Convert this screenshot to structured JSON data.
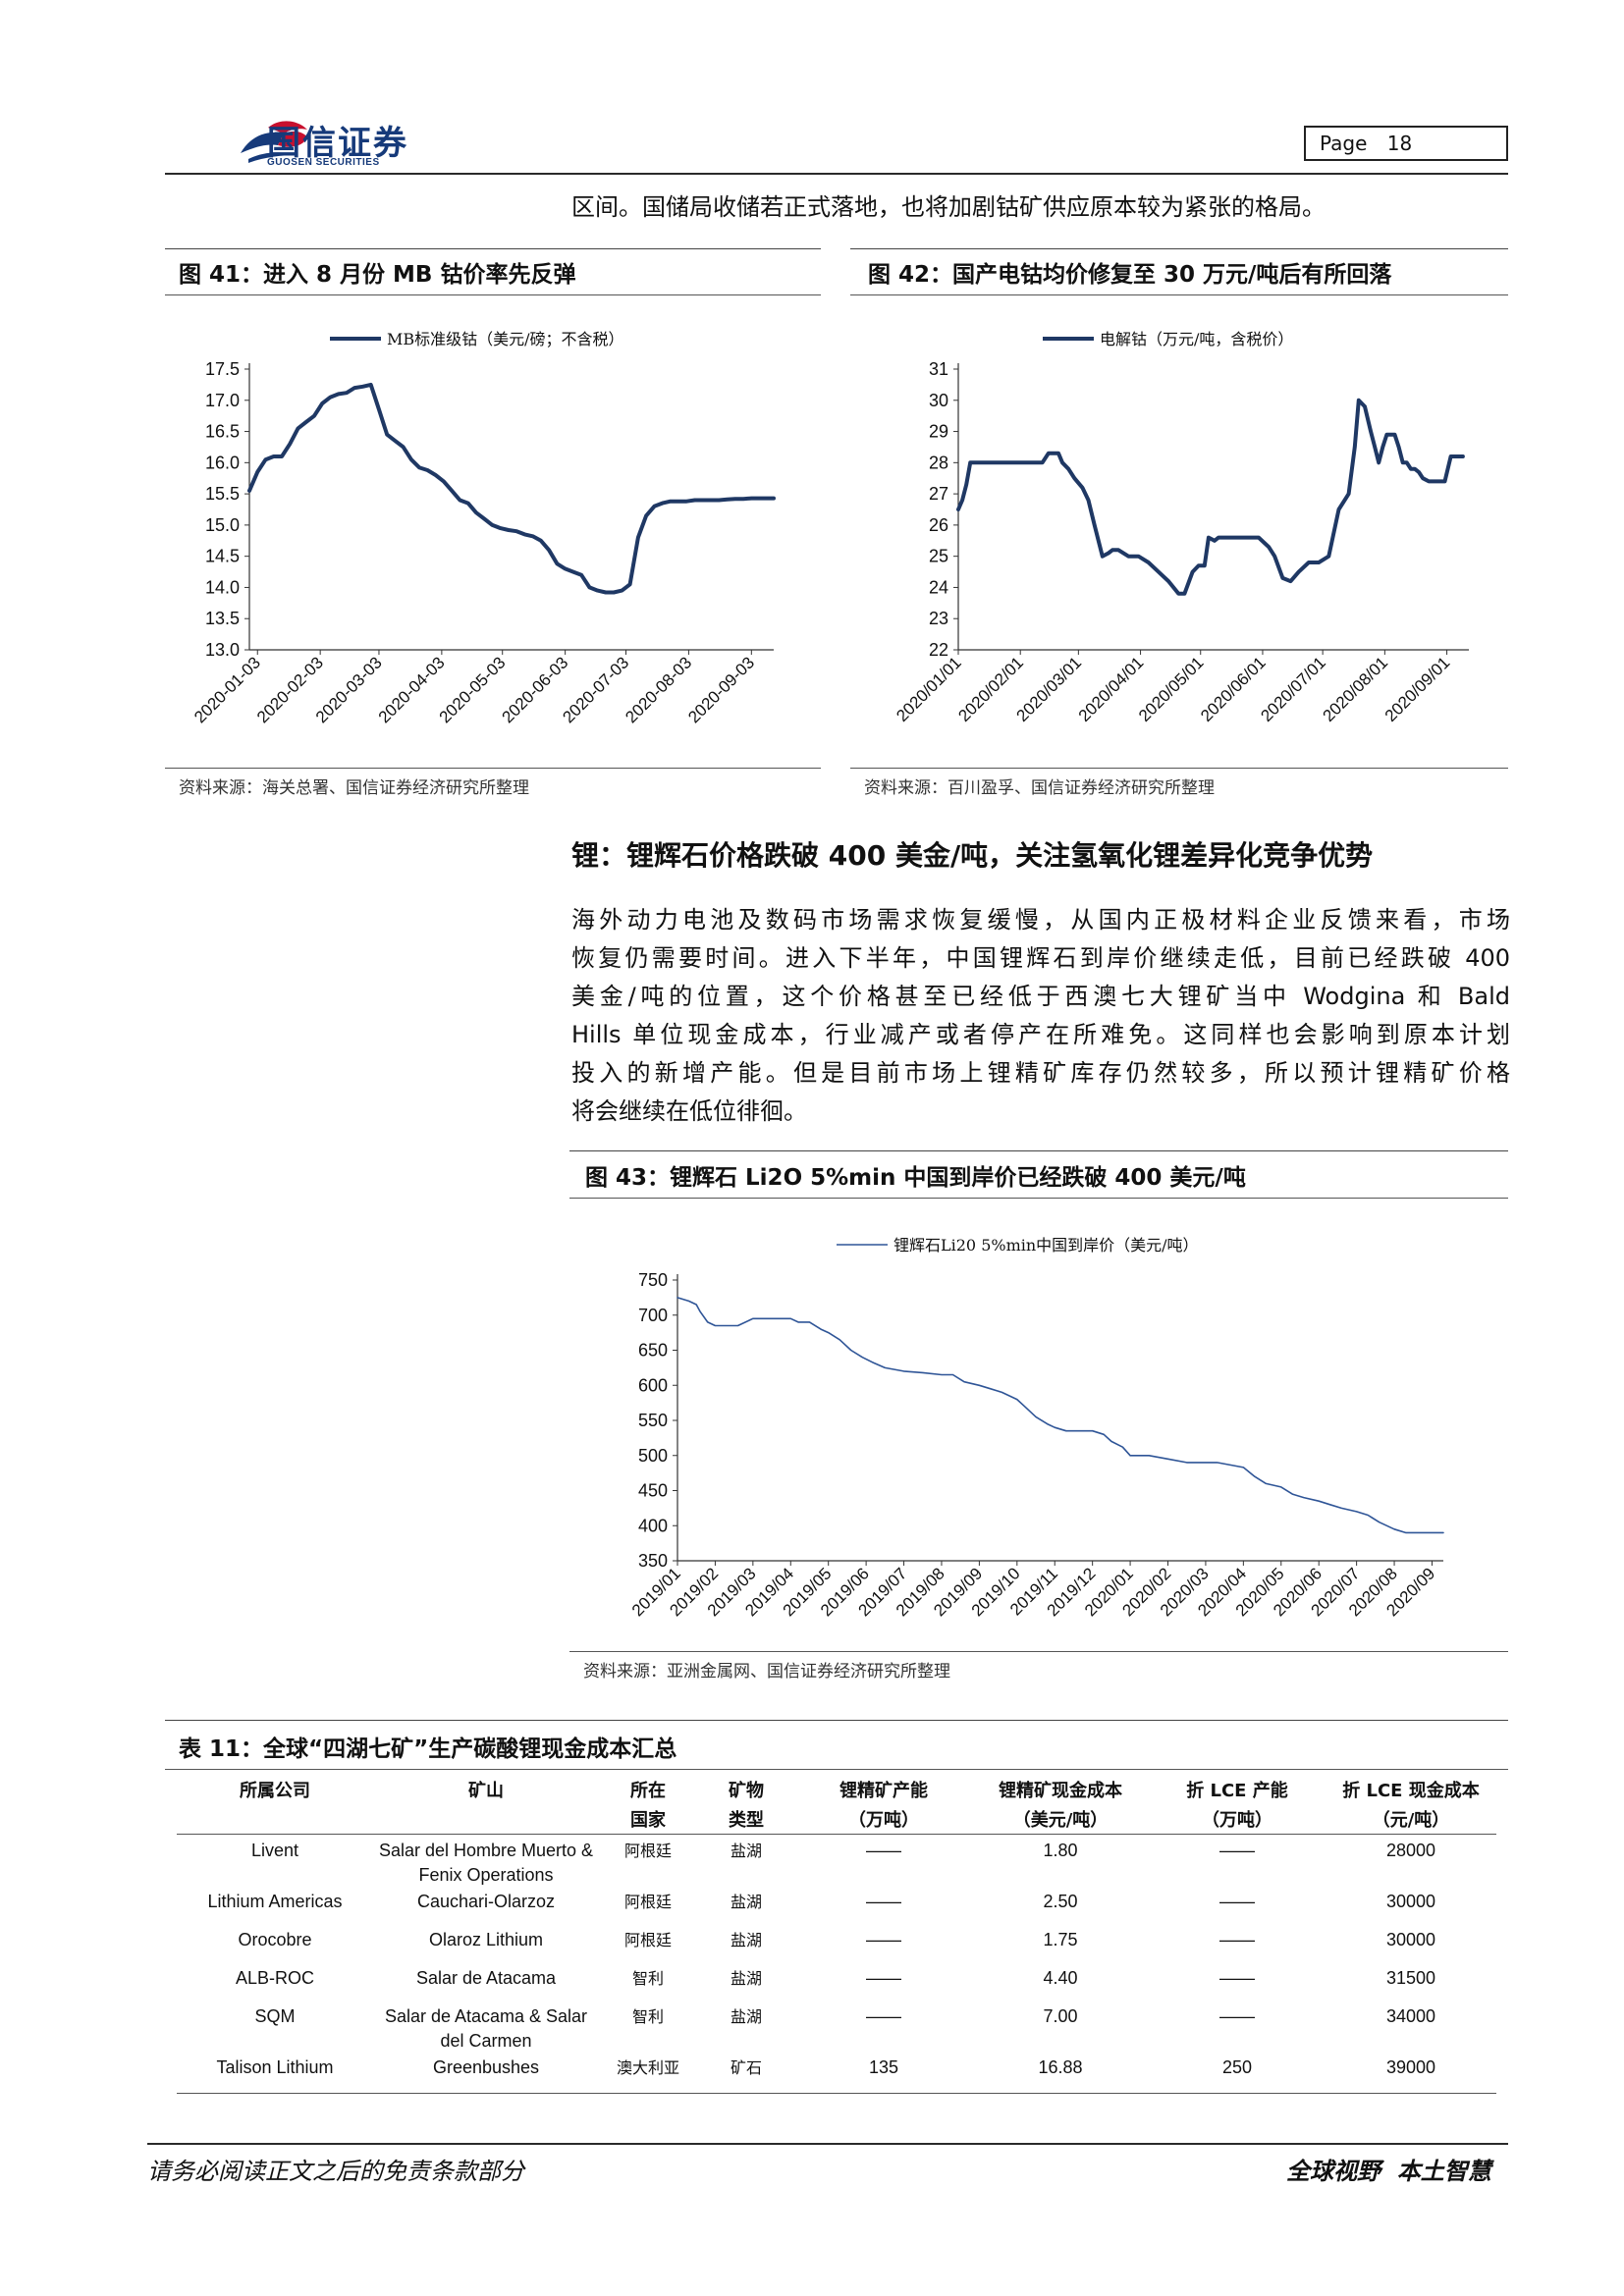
{
  "header": {
    "logo_cn": "国信证券",
    "logo_en": "GUOSEN SECURITIES",
    "page_label": "Page",
    "page_number": "18",
    "brand_colors": {
      "blue": "#163a7a",
      "red": "#c8102e"
    }
  },
  "intro_paragraph": "区间。国储局收储若正式落地，也将加剧钴矿供应原本较为紧张的格局。",
  "fig41": {
    "title": "图 41：进入 8 月份 MB 钴价率先反弹",
    "source": "资料来源：海关总署、国信证券经济研究所整理"
  },
  "fig42": {
    "title": "图 42：国产电钴均价修复至 30 万元/吨后有所回落",
    "source": "资料来源：百川盈孚、国信证券经济研究所整理"
  },
  "section": {
    "heading": "锂：锂辉石价格跌破 400 美金/吨，关注氢氧化锂差异化竞争优势",
    "lines": [
      "海外动力电池及数码市场需求恢复缓慢，从国内正极材料企业反馈来看，市场",
      "恢复仍需要时间。进入下半年，中国锂辉石到岸价继续走低，目前已经跌破 400",
      "美金/吨的位置，这个价格甚至已经低于西澳七大锂矿当中 Wodgina 和 Bald",
      "Hills 单位现金成本，行业减产或者停产在所难免。这同样也会影响到原本计划",
      "投入的新增产能。但是目前市场上锂精矿库存仍然较多，所以预计锂精矿价格",
      "将会继续在低位徘徊。"
    ]
  },
  "fig43": {
    "title": "图 43：锂辉石 Li2O 5%min 中国到岸价已经跌破 400 美元/吨",
    "source": "资料来源：亚洲金属网、国信证券经济研究所整理"
  },
  "chart_data": [
    {
      "type": "line",
      "legend": "MB标准级钴（美元/磅；不含税）",
      "legend_position": "top",
      "x_ticks": [
        "2020-01-03",
        "2020-02-03",
        "2020-03-03",
        "2020-04-03",
        "2020-05-03",
        "2020-06-03",
        "2020-07-03",
        "2020-08-03",
        "2020-09-03"
      ],
      "yticks": [
        "17.5",
        "17.0",
        "16.5",
        "16.0",
        "15.5",
        "15.0",
        "14.5",
        "14.0",
        "13.5",
        "13.0"
      ],
      "ylim": [
        13.0,
        17.5
      ],
      "x_range_days": [
        -4,
        255
      ],
      "series": [
        {
          "name": "MB标准级钴（美元/磅；不含税）",
          "color": "#1f3864",
          "x_days": [
            -4,
            0,
            4,
            8,
            12,
            16,
            20,
            24,
            28,
            32,
            36,
            40,
            44,
            48,
            52,
            56,
            60,
            64,
            68,
            72,
            76,
            80,
            84,
            88,
            92,
            96,
            100,
            104,
            108,
            112,
            116,
            120,
            124,
            128,
            132,
            136,
            140,
            144,
            148,
            152,
            156,
            160,
            164,
            168,
            172,
            176,
            180,
            184,
            188,
            192,
            196,
            200,
            204,
            208,
            212,
            216,
            220,
            224,
            228,
            232,
            236,
            240,
            244,
            248,
            252,
            255
          ],
          "values": [
            15.55,
            15.85,
            16.05,
            16.1,
            16.1,
            16.3,
            16.55,
            16.65,
            16.75,
            16.95,
            17.05,
            17.1,
            17.12,
            17.2,
            17.22,
            17.25,
            16.85,
            16.45,
            16.35,
            16.25,
            16.05,
            15.92,
            15.88,
            15.8,
            15.7,
            15.55,
            15.4,
            15.35,
            15.2,
            15.1,
            15.0,
            14.95,
            14.92,
            14.9,
            14.85,
            14.82,
            14.75,
            14.6,
            14.38,
            14.3,
            14.25,
            14.2,
            14.0,
            13.95,
            13.92,
            13.92,
            13.95,
            14.05,
            14.8,
            15.15,
            15.3,
            15.35,
            15.38,
            15.38,
            15.38,
            15.4,
            15.4,
            15.4,
            15.4,
            15.41,
            15.42,
            15.42,
            15.43,
            15.43,
            15.43,
            15.43
          ]
        }
      ]
    },
    {
      "type": "line",
      "legend": "电解钴（万元/吨，含税价）",
      "legend_position": "top",
      "x_ticks": [
        "2020/01/01",
        "2020/02/01",
        "2020/03/01",
        "2020/04/01",
        "2020/05/01",
        "2020/06/01",
        "2020/07/01",
        "2020/08/01",
        "2020/09/01"
      ],
      "yticks": [
        "31",
        "30",
        "29",
        "28",
        "27",
        "26",
        "25",
        "24",
        "23",
        "22"
      ],
      "ylim": [
        22,
        31
      ],
      "x_range_days": [
        0,
        255
      ],
      "series": [
        {
          "name": "电解钴（万元/吨，含税价）",
          "color": "#1f3864",
          "x_days": [
            0,
            2,
            4,
            6,
            8,
            15,
            25,
            35,
            42,
            45,
            50,
            52,
            55,
            58,
            62,
            65,
            68,
            72,
            75,
            77,
            80,
            85,
            90,
            95,
            100,
            105,
            110,
            113,
            117,
            120,
            123,
            125,
            128,
            130,
            135,
            140,
            145,
            150,
            155,
            158,
            162,
            166,
            170,
            175,
            180,
            185,
            190,
            195,
            198,
            200,
            203,
            206,
            208,
            210,
            212,
            214,
            216,
            218,
            220,
            222,
            224,
            226,
            228,
            230,
            232,
            235,
            238,
            240,
            243,
            246,
            248,
            252
          ],
          "values": [
            26.5,
            26.8,
            27.3,
            28.0,
            28.0,
            28.0,
            28.0,
            28.0,
            28.0,
            28.3,
            28.3,
            28.0,
            27.8,
            27.5,
            27.2,
            26.8,
            26.0,
            25.0,
            25.1,
            25.2,
            25.2,
            25.0,
            25.0,
            24.8,
            24.5,
            24.2,
            23.8,
            23.8,
            24.5,
            24.7,
            24.7,
            25.6,
            25.5,
            25.6,
            25.6,
            25.6,
            25.6,
            25.6,
            25.3,
            25.0,
            24.3,
            24.2,
            24.5,
            24.8,
            24.8,
            25.0,
            26.5,
            27.0,
            28.5,
            30.0,
            29.8,
            29.0,
            28.5,
            28.0,
            28.5,
            28.9,
            28.9,
            28.9,
            28.5,
            28.0,
            28.0,
            27.8,
            27.8,
            27.7,
            27.5,
            27.4,
            27.4,
            27.4,
            27.4,
            28.2,
            28.2,
            28.2
          ]
        }
      ]
    },
    {
      "type": "line",
      "legend": "锂辉石Li20 5%min中国到岸价（美元/吨）",
      "legend_position": "top",
      "x_ticks": [
        "2019/01",
        "2019/02",
        "2019/03",
        "2019/04",
        "2019/05",
        "2019/06",
        "2019/07",
        "2019/08",
        "2019/09",
        "2019/10",
        "2019/11",
        "2019/12",
        "2020/01",
        "2020/02",
        "2020/03",
        "2020/04",
        "2020/05",
        "2020/06",
        "2020/07",
        "2020/08",
        "2020/09"
      ],
      "yticks": [
        "750",
        "700",
        "650",
        "600",
        "550",
        "500",
        "450",
        "400",
        "350"
      ],
      "ylim": [
        350,
        750
      ],
      "x_range_months": [
        0,
        20.3
      ],
      "series": [
        {
          "name": "锂辉石Li20 5%min中国到岸价（美元/吨）",
          "color": "#2f5597",
          "x_months": [
            0,
            0.3,
            0.5,
            0.6,
            0.8,
            1.0,
            1.5,
            1.6,
            2.0,
            2.5,
            3.0,
            3.2,
            3.5,
            3.8,
            4.0,
            4.3,
            4.6,
            4.9,
            5.2,
            5.5,
            6.0,
            6.5,
            7.0,
            7.3,
            7.6,
            8.0,
            8.3,
            8.6,
            9.0,
            9.2,
            9.5,
            9.8,
            10.0,
            10.3,
            10.6,
            11.0,
            11.3,
            11.5,
            11.8,
            12.0,
            12.5,
            13.0,
            13.5,
            14.0,
            14.3,
            14.6,
            15.0,
            15.3,
            15.6,
            16.0,
            16.3,
            16.6,
            17.0,
            17.3,
            17.6,
            18.0,
            18.3,
            18.6,
            19.0,
            19.3,
            19.6,
            20.0,
            20.3
          ],
          "values": [
            725,
            720,
            715,
            705,
            690,
            685,
            685,
            685,
            695,
            695,
            695,
            690,
            690,
            680,
            675,
            665,
            650,
            640,
            632,
            625,
            620,
            618,
            615,
            615,
            605,
            600,
            595,
            590,
            580,
            570,
            555,
            545,
            540,
            535,
            535,
            535,
            530,
            520,
            512,
            500,
            500,
            495,
            490,
            490,
            490,
            487,
            483,
            470,
            460,
            455,
            445,
            440,
            435,
            430,
            425,
            420,
            415,
            405,
            395,
            390,
            390,
            390,
            390
          ]
        }
      ]
    }
  ],
  "table": {
    "title": "表 11：全球“四湖七矿”生产碳酸锂现金成本汇总",
    "headers": [
      [
        "所属公司",
        ""
      ],
      [
        "矿山",
        ""
      ],
      [
        "所在",
        "国家"
      ],
      [
        "矿物",
        "类型"
      ],
      [
        "锂精矿产能",
        "（万吨）"
      ],
      [
        "锂精矿现金成本",
        "（美元/吨）"
      ],
      [
        "折 LCE 产能",
        "（万吨）"
      ],
      [
        "折 LCE 现金成本",
        "（元/吨）"
      ]
    ],
    "rows": [
      [
        "Livent",
        "Salar del Hombre Muerto & Fenix Operations",
        "阿根廷",
        "盐湖",
        "——",
        "1.80",
        "——",
        "28000"
      ],
      [
        "Lithium Americas",
        "Cauchari-Olarzoz",
        "阿根廷",
        "盐湖",
        "——",
        "2.50",
        "——",
        "30000"
      ],
      [
        "Orocobre",
        "Olaroz Lithium",
        "阿根廷",
        "盐湖",
        "——",
        "1.75",
        "——",
        "30000"
      ],
      [
        "ALB-ROC",
        "Salar de Atacama",
        "智利",
        "盐湖",
        "——",
        "4.40",
        "——",
        "31500"
      ],
      [
        "SQM",
        "Salar de Atacama & Salar del Carmen",
        "智利",
        "盐湖",
        "——",
        "7.00",
        "——",
        "34000"
      ],
      [
        "Talison Lithium",
        "Greenbushes",
        "澳大利亚",
        "矿石",
        "135",
        "16.88",
        "250",
        "39000"
      ]
    ]
  },
  "footer": {
    "left": "请务必阅读正文之后的免责条款部分",
    "right": "全球视野  本土智慧"
  }
}
